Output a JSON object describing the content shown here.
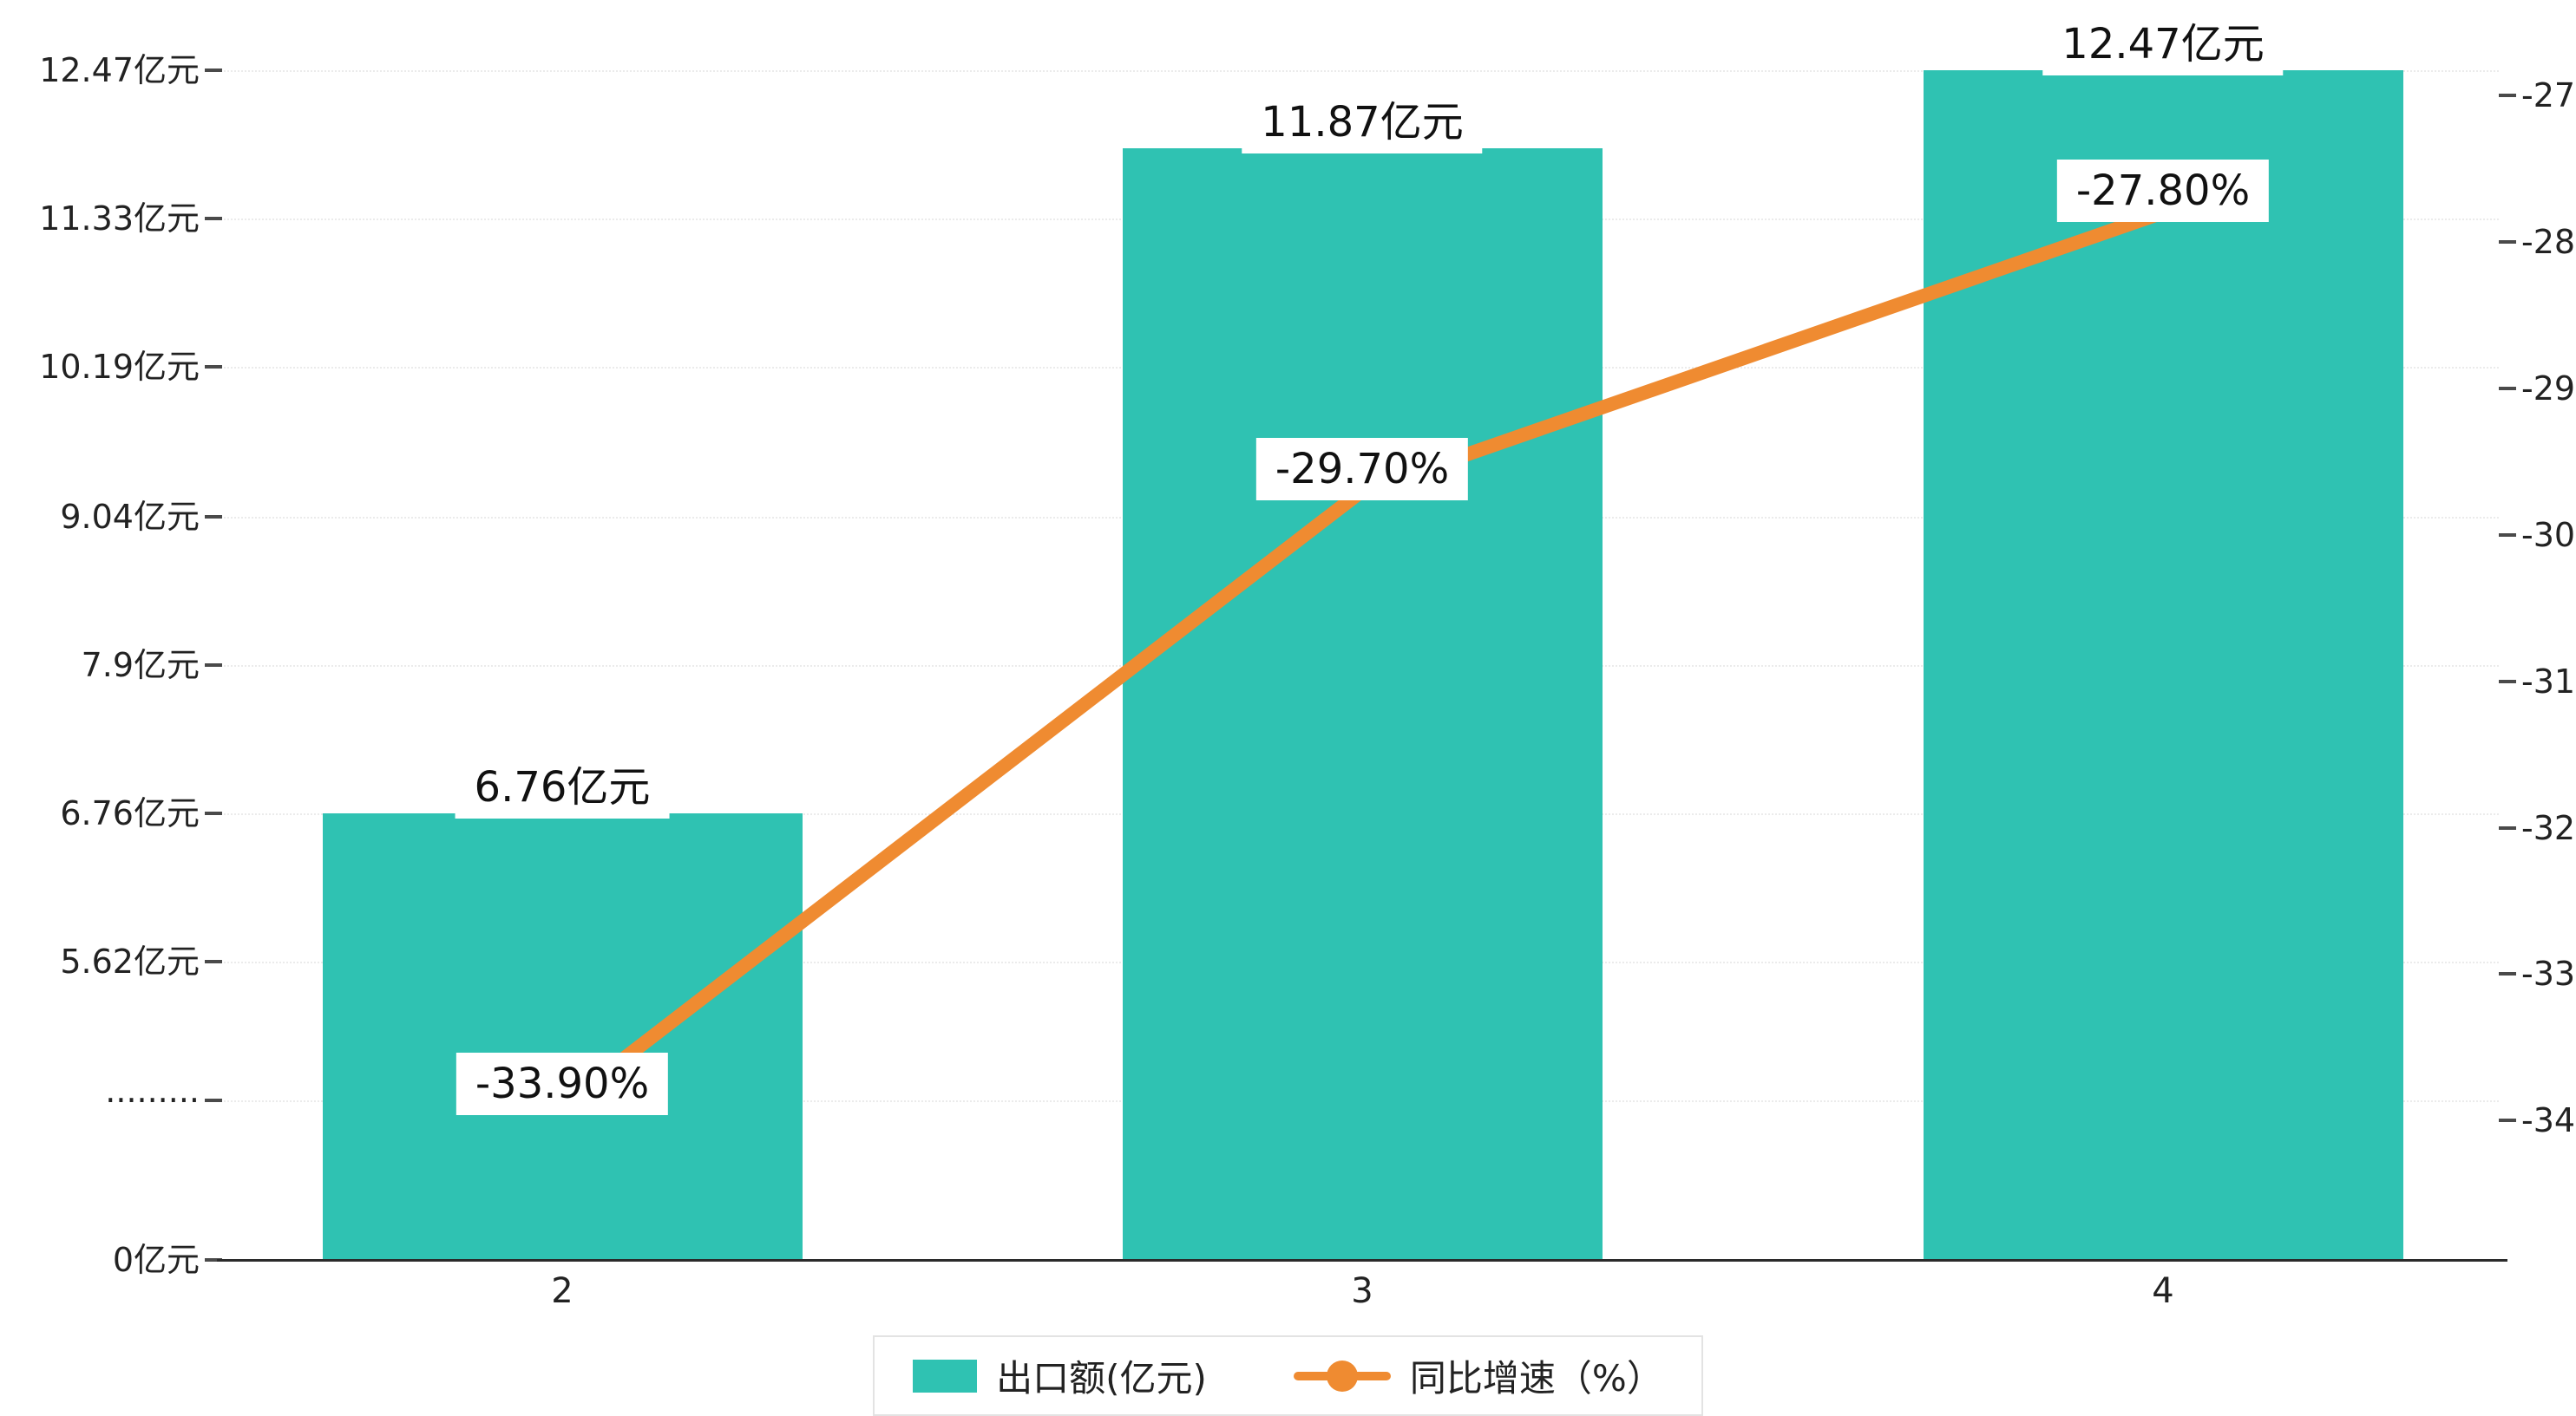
{
  "chart_data": {
    "type": "bar+line",
    "categories": [
      "2",
      "3",
      "4"
    ],
    "series": [
      {
        "name": "出口额(亿元)",
        "type": "bar",
        "values": [
          6.76,
          11.87,
          12.47
        ],
        "labels": [
          "6.76亿元",
          "11.87亿元",
          "12.47亿元"
        ],
        "color": "#2fc2b2"
      },
      {
        "name": "同比增速（%）",
        "type": "line",
        "values": [
          -33.9,
          -29.7,
          -27.8
        ],
        "labels": [
          "-33.90%",
          "-29.70%",
          "-27.80%"
        ],
        "color": "#ef8b31"
      }
    ],
    "left_axis": {
      "tick_labels": [
        "12.47亿元",
        "11.33亿元",
        "10.19亿元",
        "9.04亿元",
        "7.9亿元",
        "6.76亿元",
        "5.62亿元",
        "·········",
        "0亿元"
      ],
      "axis_break": true,
      "min": 0,
      "max": 12.47
    },
    "right_axis": {
      "tick_labels": [
        "-27",
        "-28",
        "-29",
        "-30",
        "-31",
        "-32",
        "-33",
        "-34"
      ],
      "min": -34,
      "max": -27
    },
    "legend": [
      {
        "label": "出口额(亿元)"
      },
      {
        "label": "同比增速（%）"
      }
    ],
    "grid": "dotted-horizontal",
    "legend_position": "bottom-center"
  }
}
